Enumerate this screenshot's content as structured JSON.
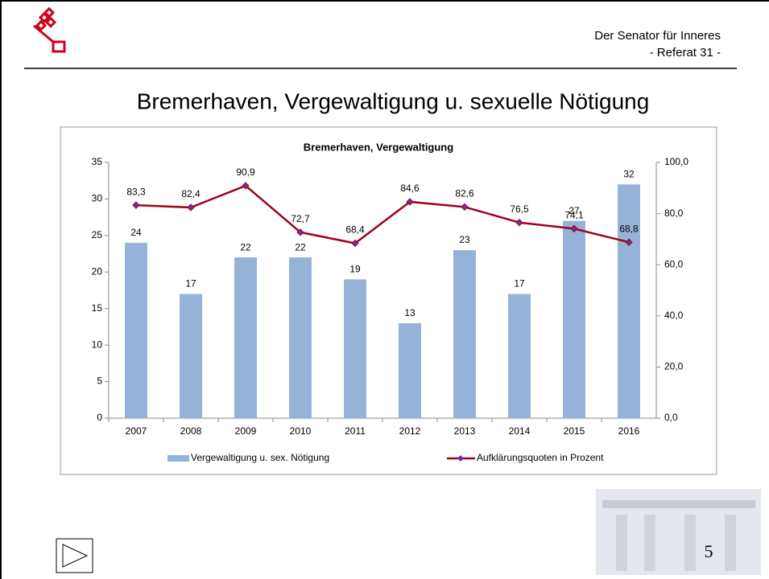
{
  "header": {
    "org": "Der Senator für Inneres",
    "unit": "- Referat 31 -"
  },
  "slide_title": "Bremerhaven, Vergewaltigung u. sexuelle Nötigung",
  "page_number": "5",
  "chart_data": {
    "type": "combo",
    "title": "Bremerhaven, Vergewaltigung",
    "categories": [
      "2007",
      "2008",
      "2009",
      "2010",
      "2011",
      "2012",
      "2013",
      "2014",
      "2015",
      "2016"
    ],
    "series": [
      {
        "name": "Vergewaltigung u. sex. Nötigung",
        "type": "bar",
        "color": "#95b3d7",
        "values": [
          24,
          17,
          22,
          22,
          19,
          13,
          23,
          17,
          27,
          32
        ]
      },
      {
        "name": "Aufklärungsquoten in Prozent",
        "type": "line",
        "axis": "y2",
        "color": "#a0001e",
        "marker_color": "#7030a0",
        "values": [
          83.3,
          82.4,
          90.9,
          72.7,
          68.4,
          84.6,
          82.6,
          76.5,
          74.1,
          68.8
        ],
        "value_labels": [
          "83,3",
          "82,4",
          "90,9",
          "72,7",
          "68,4",
          "84,6",
          "82,6",
          "76,5",
          "74,1",
          "68,8"
        ]
      }
    ],
    "ylim": [
      0,
      35
    ],
    "yticks": [
      0,
      5,
      10,
      15,
      20,
      25,
      30,
      35
    ],
    "y2lim": [
      0,
      100
    ],
    "y2ticks": [
      {
        "value": 0,
        "label": "0,0"
      },
      {
        "value": 20,
        "label": "20,0"
      },
      {
        "value": 40,
        "label": "40,0"
      },
      {
        "value": 60,
        "label": "60,0"
      },
      {
        "value": 80,
        "label": "80,0"
      },
      {
        "value": 100,
        "label": "100,0"
      }
    ],
    "grid": false,
    "legend": "bottom"
  }
}
